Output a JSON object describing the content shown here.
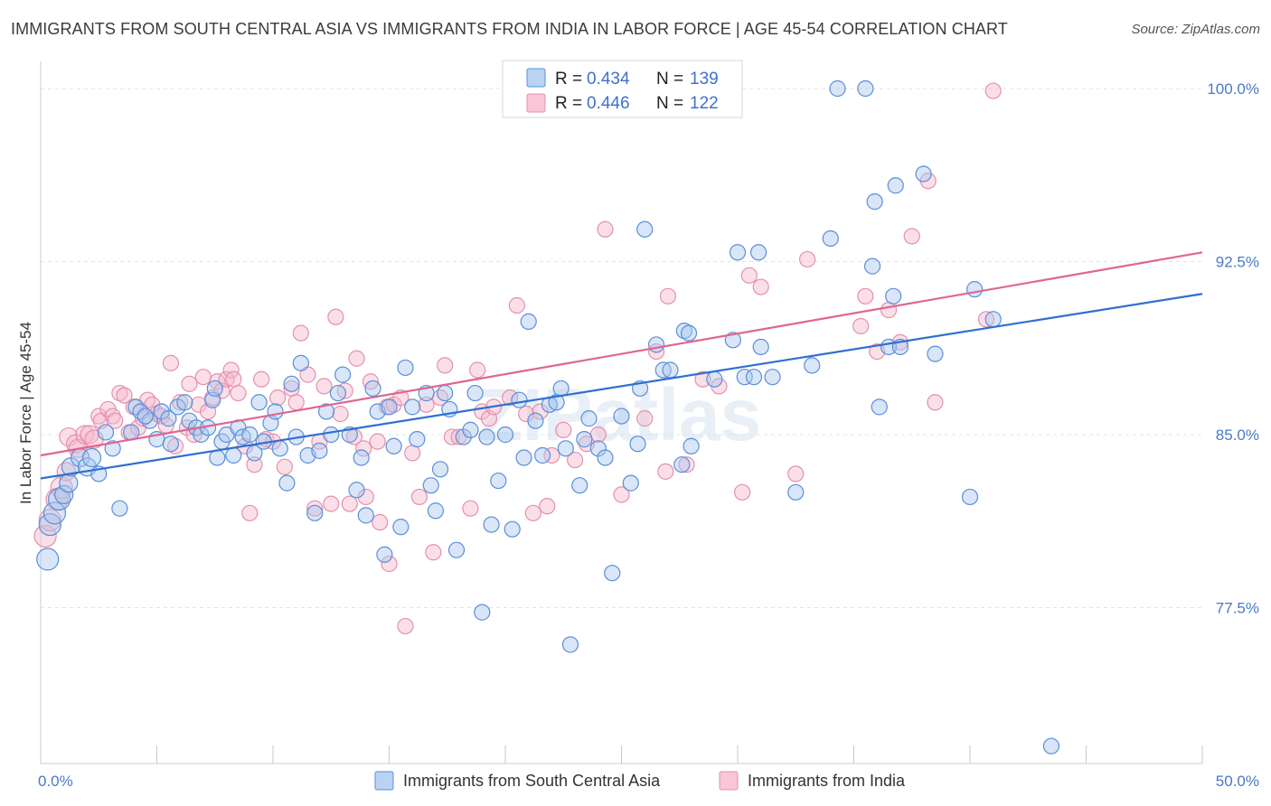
{
  "title": "IMMIGRANTS FROM SOUTH CENTRAL ASIA VS IMMIGRANTS FROM INDIA IN LABOR FORCE | AGE 45-54 CORRELATION CHART",
  "source": "Source: ZipAtlas.com",
  "watermark": "ZIPatlas",
  "colors": {
    "blue_fill": "#a9c8f0",
    "blue_stroke": "#5b8fd8",
    "blue_line": "#2f6fd1",
    "pink_fill": "#f6b8cc",
    "pink_stroke": "#e590ad",
    "pink_line": "#e0668f",
    "tick_label": "#4a79c9"
  },
  "chart_data": {
    "type": "scatter",
    "title": "IMMIGRANTS FROM SOUTH CENTRAL ASIA VS IMMIGRANTS FROM INDIA IN LABOR FORCE | AGE 45-54 CORRELATION CHART",
    "ylabel": "In Labor Force | Age 45-54",
    "xlabel": "",
    "xlim": [
      0,
      50
    ],
    "ylim": [
      70,
      100.7
    ],
    "x_tick_labels": [
      "0.0%",
      "50.0%"
    ],
    "y_ticks": [
      77.5,
      85.0,
      92.5,
      100.0
    ],
    "y_tick_labels": [
      "77.5%",
      "85.0%",
      "92.5%",
      "100.0%"
    ],
    "grid": true,
    "legend_placement": "top-center",
    "legend": [
      {
        "r_label": "R =",
        "r": "0.434",
        "n_label": "N =",
        "n": "139"
      },
      {
        "r_label": "R =",
        "r": "0.446",
        "n_label": "N =",
        "n": "122"
      }
    ],
    "series": [
      {
        "name": "Immigrants from South Central Asia",
        "color": "#a9c8f0",
        "trend": {
          "x": [
            0,
            50
          ],
          "y": [
            83.1,
            91.1
          ]
        },
        "points": [
          [
            0.3,
            79.6
          ],
          [
            0.4,
            81.1
          ],
          [
            0.6,
            81.6
          ],
          [
            0.8,
            82.2
          ],
          [
            1.0,
            82.4
          ],
          [
            1.2,
            82.9
          ],
          [
            1.3,
            83.6
          ],
          [
            1.7,
            84.0
          ],
          [
            2.0,
            83.6
          ],
          [
            2.2,
            84.0
          ],
          [
            2.5,
            83.3
          ],
          [
            2.8,
            85.1
          ],
          [
            3.1,
            84.4
          ],
          [
            3.4,
            81.8
          ],
          [
            3.9,
            85.1
          ],
          [
            4.1,
            86.2
          ],
          [
            4.3,
            86.0
          ],
          [
            4.7,
            85.6
          ],
          [
            4.5,
            85.8
          ],
          [
            5.0,
            84.8
          ],
          [
            5.2,
            86.0
          ],
          [
            5.6,
            84.6
          ],
          [
            5.5,
            85.7
          ],
          [
            5.9,
            86.2
          ],
          [
            6.2,
            86.4
          ],
          [
            6.4,
            85.6
          ],
          [
            6.7,
            85.3
          ],
          [
            6.9,
            85.0
          ],
          [
            7.2,
            85.3
          ],
          [
            7.4,
            86.5
          ],
          [
            7.5,
            87.0
          ],
          [
            7.6,
            84.0
          ],
          [
            7.8,
            84.7
          ],
          [
            8.0,
            85.0
          ],
          [
            8.3,
            84.1
          ],
          [
            8.5,
            85.3
          ],
          [
            8.7,
            84.9
          ],
          [
            9.0,
            85.0
          ],
          [
            9.2,
            84.2
          ],
          [
            9.4,
            86.4
          ],
          [
            9.6,
            84.7
          ],
          [
            9.9,
            85.5
          ],
          [
            10.1,
            86.0
          ],
          [
            10.3,
            84.4
          ],
          [
            10.6,
            82.9
          ],
          [
            10.8,
            87.2
          ],
          [
            11.0,
            84.9
          ],
          [
            11.2,
            88.1
          ],
          [
            11.5,
            84.1
          ],
          [
            11.8,
            81.6
          ],
          [
            12.0,
            84.3
          ],
          [
            12.3,
            86.0
          ],
          [
            12.5,
            85.0
          ],
          [
            12.8,
            86.8
          ],
          [
            13.0,
            87.6
          ],
          [
            13.3,
            85.0
          ],
          [
            13.6,
            82.6
          ],
          [
            13.8,
            84.0
          ],
          [
            14.0,
            81.5
          ],
          [
            14.3,
            87.0
          ],
          [
            14.5,
            86.0
          ],
          [
            14.8,
            79.8
          ],
          [
            15.0,
            86.2
          ],
          [
            15.2,
            84.5
          ],
          [
            15.5,
            81.0
          ],
          [
            15.7,
            87.9
          ],
          [
            16.0,
            86.2
          ],
          [
            16.2,
            84.8
          ],
          [
            16.6,
            86.8
          ],
          [
            16.8,
            82.8
          ],
          [
            17.0,
            81.7
          ],
          [
            17.2,
            83.5
          ],
          [
            17.4,
            86.8
          ],
          [
            17.6,
            86.1
          ],
          [
            17.9,
            80.0
          ],
          [
            18.2,
            84.9
          ],
          [
            18.5,
            85.2
          ],
          [
            18.7,
            86.8
          ],
          [
            19.0,
            77.3
          ],
          [
            19.2,
            84.9
          ],
          [
            19.4,
            81.1
          ],
          [
            19.7,
            83.0
          ],
          [
            20.0,
            85.0
          ],
          [
            20.3,
            80.9
          ],
          [
            20.6,
            86.5
          ],
          [
            20.8,
            84.0
          ],
          [
            21.0,
            89.9
          ],
          [
            21.3,
            85.6
          ],
          [
            21.6,
            84.1
          ],
          [
            21.9,
            86.3
          ],
          [
            22.2,
            86.4
          ],
          [
            22.4,
            87.0
          ],
          [
            22.6,
            84.4
          ],
          [
            22.8,
            75.9
          ],
          [
            23.2,
            82.8
          ],
          [
            23.4,
            84.8
          ],
          [
            23.6,
            85.7
          ],
          [
            24.0,
            84.4
          ],
          [
            24.3,
            84.0
          ],
          [
            24.6,
            79.0
          ],
          [
            25.0,
            85.8
          ],
          [
            25.4,
            82.9
          ],
          [
            25.8,
            87.0
          ],
          [
            25.7,
            84.6
          ],
          [
            26.0,
            93.9
          ],
          [
            26.5,
            88.9
          ],
          [
            26.8,
            87.8
          ],
          [
            27.1,
            87.8
          ],
          [
            27.6,
            83.7
          ],
          [
            27.7,
            89.5
          ],
          [
            27.9,
            89.4
          ],
          [
            28.0,
            84.5
          ],
          [
            29.0,
            87.4
          ],
          [
            29.8,
            89.1
          ],
          [
            30.0,
            92.9
          ],
          [
            30.3,
            87.5
          ],
          [
            30.9,
            92.9
          ],
          [
            30.7,
            87.5
          ],
          [
            31.0,
            88.8
          ],
          [
            31.5,
            87.5
          ],
          [
            32.5,
            82.5
          ],
          [
            33.2,
            88.0
          ],
          [
            34.0,
            93.5
          ],
          [
            34.3,
            100.0
          ],
          [
            35.5,
            100.0
          ],
          [
            35.8,
            92.3
          ],
          [
            35.9,
            95.1
          ],
          [
            36.1,
            86.2
          ],
          [
            36.5,
            88.8
          ],
          [
            36.7,
            91.0
          ],
          [
            36.8,
            95.8
          ],
          [
            37.0,
            88.8
          ],
          [
            38.0,
            96.3
          ],
          [
            38.5,
            88.5
          ],
          [
            40.0,
            82.3
          ],
          [
            40.2,
            91.3
          ],
          [
            41.0,
            90.0
          ],
          [
            43.5,
            71.5
          ]
        ]
      },
      {
        "name": "Immigrants from India",
        "color": "#f6b8cc",
        "trend": {
          "x": [
            0,
            50
          ],
          "y": [
            84.1,
            92.9
          ]
        },
        "points": [
          [
            0.2,
            80.6
          ],
          [
            0.4,
            81.3
          ],
          [
            0.7,
            82.2
          ],
          [
            0.9,
            82.7
          ],
          [
            1.1,
            83.4
          ],
          [
            1.2,
            84.9
          ],
          [
            1.5,
            84.6
          ],
          [
            1.6,
            84.4
          ],
          [
            1.9,
            85.0
          ],
          [
            2.1,
            85.0
          ],
          [
            2.3,
            84.8
          ],
          [
            2.5,
            85.8
          ],
          [
            2.6,
            85.6
          ],
          [
            2.9,
            86.1
          ],
          [
            3.1,
            85.8
          ],
          [
            3.2,
            85.6
          ],
          [
            3.4,
            86.8
          ],
          [
            3.6,
            86.7
          ],
          [
            3.8,
            85.1
          ],
          [
            4.0,
            86.2
          ],
          [
            4.2,
            85.3
          ],
          [
            4.4,
            85.7
          ],
          [
            4.6,
            86.5
          ],
          [
            4.8,
            86.3
          ],
          [
            5.0,
            85.9
          ],
          [
            5.2,
            85.8
          ],
          [
            5.4,
            85.4
          ],
          [
            5.6,
            88.1
          ],
          [
            5.8,
            84.5
          ],
          [
            6.0,
            86.4
          ],
          [
            6.3,
            85.3
          ],
          [
            6.4,
            87.2
          ],
          [
            6.6,
            85.0
          ],
          [
            6.8,
            86.3
          ],
          [
            7.0,
            87.5
          ],
          [
            7.2,
            86.0
          ],
          [
            7.4,
            86.6
          ],
          [
            7.6,
            87.3
          ],
          [
            7.8,
            86.9
          ],
          [
            8.0,
            87.4
          ],
          [
            8.2,
            87.8
          ],
          [
            8.3,
            87.4
          ],
          [
            8.5,
            86.8
          ],
          [
            8.8,
            84.5
          ],
          [
            9.0,
            81.6
          ],
          [
            9.2,
            83.7
          ],
          [
            9.5,
            87.4
          ],
          [
            9.7,
            84.8
          ],
          [
            10.0,
            84.7
          ],
          [
            10.2,
            86.6
          ],
          [
            10.5,
            83.6
          ],
          [
            10.8,
            87.0
          ],
          [
            11.0,
            86.4
          ],
          [
            11.2,
            89.4
          ],
          [
            11.5,
            87.6
          ],
          [
            11.8,
            81.8
          ],
          [
            12.0,
            84.7
          ],
          [
            12.2,
            87.1
          ],
          [
            12.5,
            82.0
          ],
          [
            12.7,
            90.1
          ],
          [
            12.9,
            85.9
          ],
          [
            13.1,
            86.9
          ],
          [
            13.3,
            82.0
          ],
          [
            13.5,
            84.9
          ],
          [
            13.6,
            88.3
          ],
          [
            13.9,
            84.4
          ],
          [
            14.0,
            82.3
          ],
          [
            14.2,
            87.3
          ],
          [
            14.5,
            84.7
          ],
          [
            14.6,
            81.2
          ],
          [
            14.9,
            86.2
          ],
          [
            15.0,
            79.4
          ],
          [
            15.2,
            86.3
          ],
          [
            15.5,
            86.6
          ],
          [
            15.7,
            76.7
          ],
          [
            16.0,
            84.2
          ],
          [
            16.3,
            82.3
          ],
          [
            16.6,
            86.3
          ],
          [
            16.9,
            79.9
          ],
          [
            17.2,
            86.6
          ],
          [
            17.4,
            88.0
          ],
          [
            17.7,
            84.9
          ],
          [
            18.0,
            84.9
          ],
          [
            18.5,
            81.8
          ],
          [
            18.8,
            87.8
          ],
          [
            19.0,
            86.0
          ],
          [
            19.3,
            85.7
          ],
          [
            19.5,
            86.2
          ],
          [
            20.2,
            86.6
          ],
          [
            20.5,
            90.6
          ],
          [
            20.9,
            85.9
          ],
          [
            21.2,
            81.6
          ],
          [
            21.5,
            86.0
          ],
          [
            21.8,
            81.9
          ],
          [
            22.0,
            84.1
          ],
          [
            22.5,
            85.2
          ],
          [
            23.0,
            83.9
          ],
          [
            23.5,
            84.6
          ],
          [
            24.0,
            85.0
          ],
          [
            24.3,
            93.9
          ],
          [
            25.0,
            82.4
          ],
          [
            26.0,
            85.7
          ],
          [
            26.5,
            88.6
          ],
          [
            26.9,
            83.4
          ],
          [
            27.0,
            91.0
          ],
          [
            27.8,
            83.7
          ],
          [
            28.5,
            87.4
          ],
          [
            29.2,
            87.1
          ],
          [
            30.2,
            82.5
          ],
          [
            30.5,
            91.9
          ],
          [
            31.0,
            91.4
          ],
          [
            32.5,
            83.3
          ],
          [
            33.0,
            92.6
          ],
          [
            35.3,
            89.7
          ],
          [
            35.5,
            91.0
          ],
          [
            36.0,
            88.6
          ],
          [
            36.5,
            90.4
          ],
          [
            37.0,
            89.0
          ],
          [
            37.5,
            93.6
          ],
          [
            38.2,
            96.0
          ],
          [
            38.5,
            86.4
          ],
          [
            40.7,
            90.0
          ],
          [
            41.0,
            99.9
          ]
        ]
      }
    ]
  },
  "legend_bottom": [
    {
      "label": "Immigrants from South Central Asia"
    },
    {
      "label": "Immigrants from India"
    }
  ]
}
